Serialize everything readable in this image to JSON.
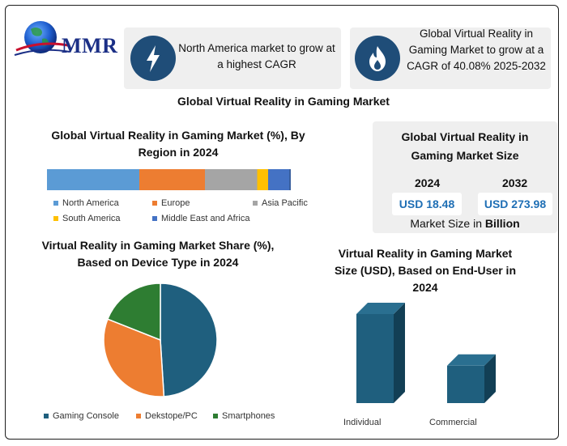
{
  "brand": {
    "logo_text": "MMR"
  },
  "info_boxes": [
    {
      "icon": "lightning-bolt-icon",
      "text_line1": "North America market to grow at",
      "text_line2": "a highest CAGR"
    },
    {
      "icon": "flame-icon",
      "text_line1": "Global Virtual Reality in",
      "text_line2": "Gaming Market to grow at a",
      "text_line3": "CAGR of 40.08% 2025-2032"
    }
  ],
  "main_title": "Global Virtual Reality in Gaming Market",
  "market_size": {
    "title_line1": "Global Virtual Reality in",
    "title_line2": "Gaming Market Size",
    "year_1": "2024",
    "year_2": "2032",
    "value_1": "USD 18.48",
    "value_2": "USD 273.98",
    "caption_prefix": "Market Size in ",
    "caption_unit": "Billion"
  },
  "chart_data": [
    {
      "type": "bar",
      "orientation": "horizontal-stacked-100",
      "title_line1": "Global Virtual Reality in Gaming Market (%), By",
      "title_line2": "Region in 2024",
      "series": [
        {
          "name": "North America",
          "value": 38,
          "color": "#5b9bd5"
        },
        {
          "name": "Europe",
          "value": 27,
          "color": "#ed7d31"
        },
        {
          "name": "Asia Pacific",
          "value": 21.5,
          "color": "#a5a5a5"
        },
        {
          "name": "South America",
          "value": 4.5,
          "color": "#ffc000"
        },
        {
          "name": "Middle East and Africa",
          "value": 9,
          "color": "#4472c4"
        }
      ],
      "legend_placement": "bottom"
    },
    {
      "type": "pie",
      "title_line1": "Virtual Reality in Gaming Market Share (%),",
      "title_line2": "Based on Device Type in 2024",
      "slices": [
        {
          "name": "Gaming Console",
          "value": 49,
          "color": "#1f5f7e"
        },
        {
          "name": "Dekstope/PC",
          "value": 32,
          "color": "#ed7d31"
        },
        {
          "name": "Smartphones",
          "value": 19,
          "color": "#2e7d32"
        }
      ],
      "legend_placement": "bottom"
    },
    {
      "type": "bar",
      "orientation": "vertical-3d",
      "title_line1": "Virtual Reality in Gaming Market",
      "title_line2": "Size (USD), Based on End-User in",
      "title_line3": "2024",
      "categories": [
        "Individual",
        "Commercial"
      ],
      "values": [
        100,
        42
      ],
      "ylim": [
        0,
        100
      ],
      "color": "#1f5f7e"
    }
  ]
}
